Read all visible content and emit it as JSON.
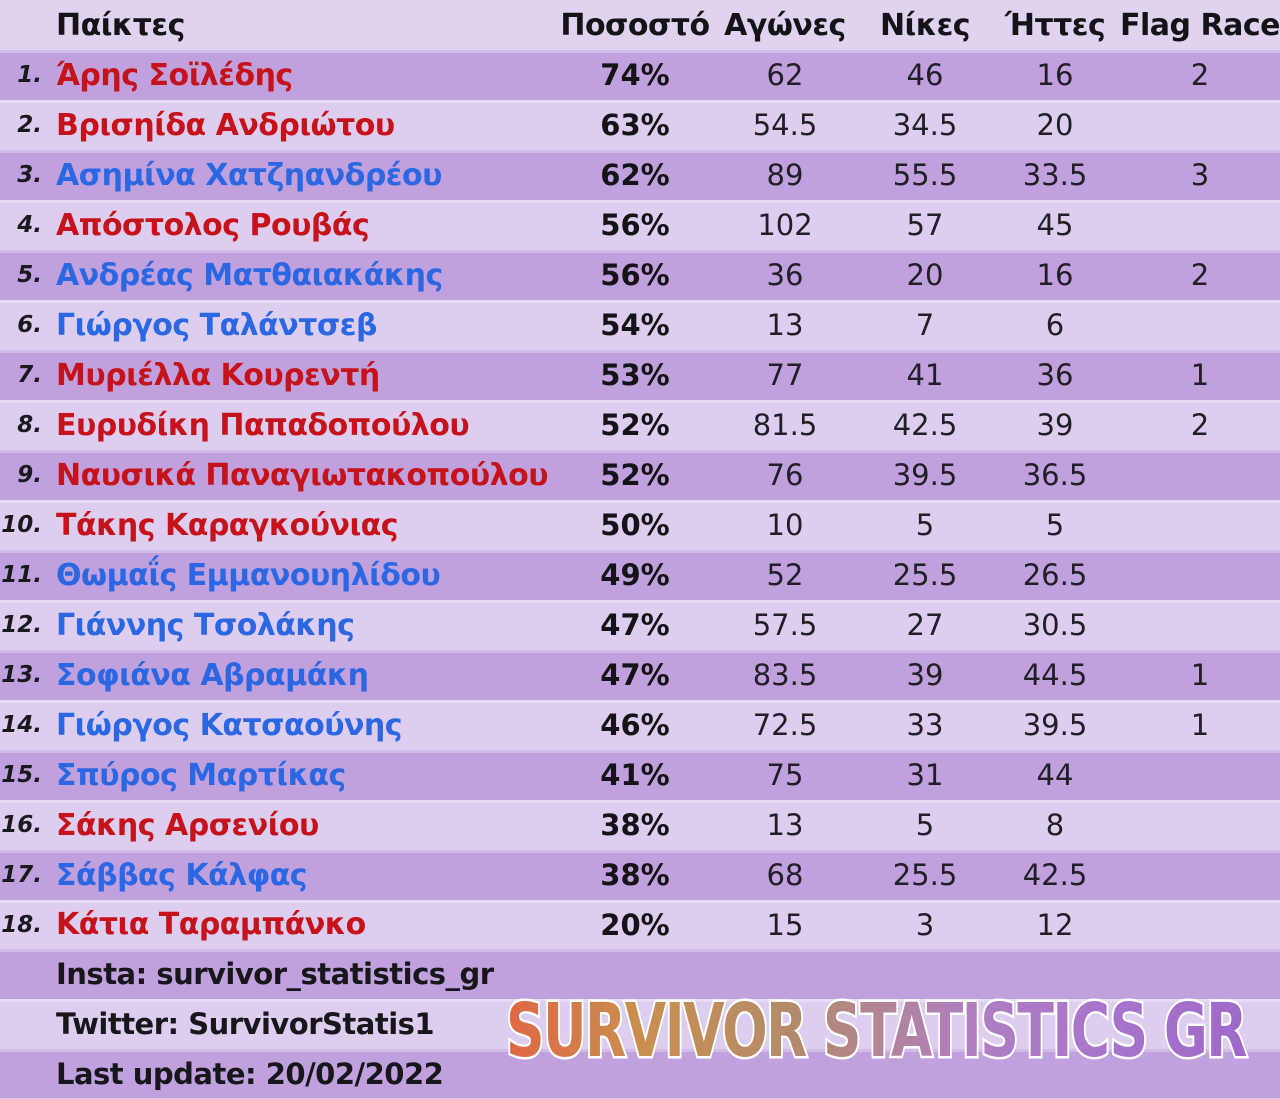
{
  "header": {
    "players": "Παίκτες",
    "percentage": "Ποσοστό",
    "matches": "Αγώνες",
    "wins": "Νίκες",
    "losses": "Ήττες",
    "flag_race": "Flag Race"
  },
  "rows": [
    {
      "rank": "1.",
      "name": "Άρης Σοϊλέδης",
      "color": "red",
      "pct": "74%",
      "matches": "62",
      "wins": "46",
      "losses": "16",
      "flag": "2"
    },
    {
      "rank": "2.",
      "name": "Βρισηίδα Ανδριώτου",
      "color": "red",
      "pct": "63%",
      "matches": "54.5",
      "wins": "34.5",
      "losses": "20",
      "flag": ""
    },
    {
      "rank": "3.",
      "name": "Ασημίνα Χατζηανδρέου",
      "color": "blue",
      "pct": "62%",
      "matches": "89",
      "wins": "55.5",
      "losses": "33.5",
      "flag": "3"
    },
    {
      "rank": "4.",
      "name": "Απόστολος Ρουβάς",
      "color": "red",
      "pct": "56%",
      "matches": "102",
      "wins": "57",
      "losses": "45",
      "flag": ""
    },
    {
      "rank": "5.",
      "name": "Ανδρέας Ματθαιακάκης",
      "color": "blue",
      "pct": "56%",
      "matches": "36",
      "wins": "20",
      "losses": "16",
      "flag": "2"
    },
    {
      "rank": "6.",
      "name": "Γιώργος Ταλάντσεβ",
      "color": "blue",
      "pct": "54%",
      "matches": "13",
      "wins": "7",
      "losses": "6",
      "flag": ""
    },
    {
      "rank": "7.",
      "name": "Μυριέλλα Κουρεντή",
      "color": "red",
      "pct": "53%",
      "matches": "77",
      "wins": "41",
      "losses": "36",
      "flag": "1"
    },
    {
      "rank": "8.",
      "name": "Ευρυδίκη Παπαδοπούλου",
      "color": "red",
      "pct": "52%",
      "matches": "81.5",
      "wins": "42.5",
      "losses": "39",
      "flag": "2"
    },
    {
      "rank": "9.",
      "name": "Ναυσικά Παναγιωτακοπούλου",
      "color": "red",
      "pct": "52%",
      "matches": "76",
      "wins": "39.5",
      "losses": "36.5",
      "flag": ""
    },
    {
      "rank": "10.",
      "name": "Τάκης Καραγκούνιας",
      "color": "red",
      "pct": "50%",
      "matches": "10",
      "wins": "5",
      "losses": "5",
      "flag": ""
    },
    {
      "rank": "11.",
      "name": "Θωμαΐς Εμμανουηλίδου",
      "color": "blue",
      "pct": "49%",
      "matches": "52",
      "wins": "25.5",
      "losses": "26.5",
      "flag": ""
    },
    {
      "rank": "12.",
      "name": "Γιάννης Τσολάκης",
      "color": "blue",
      "pct": "47%",
      "matches": "57.5",
      "wins": "27",
      "losses": "30.5",
      "flag": ""
    },
    {
      "rank": "13.",
      "name": "Σοφιάνα Αβραμάκη",
      "color": "blue",
      "pct": "47%",
      "matches": "83.5",
      "wins": "39",
      "losses": "44.5",
      "flag": "1"
    },
    {
      "rank": "14.",
      "name": "Γιώργος Κατσαούνης",
      "color": "blue",
      "pct": "46%",
      "matches": "72.5",
      "wins": "33",
      "losses": "39.5",
      "flag": "1"
    },
    {
      "rank": "15.",
      "name": "Σπύρος Μαρτίκας",
      "color": "blue",
      "pct": "41%",
      "matches": "75",
      "wins": "31",
      "losses": "44",
      "flag": ""
    },
    {
      "rank": "16.",
      "name": "Σάκης Αρσενίου",
      "color": "red",
      "pct": "38%",
      "matches": "13",
      "wins": "5",
      "losses": "8",
      "flag": ""
    },
    {
      "rank": "17.",
      "name": "Σάββας Κάλφας",
      "color": "blue",
      "pct": "38%",
      "matches": "68",
      "wins": "25.5",
      "losses": "42.5",
      "flag": ""
    },
    {
      "rank": "18.",
      "name": "Κάτια Ταραμπάνκο",
      "color": "red",
      "pct": "20%",
      "matches": "15",
      "wins": "3",
      "losses": "12",
      "flag": ""
    }
  ],
  "footer": {
    "insta": "Insta: survivor_statistics_gr",
    "twitter": "Twitter: SurvivorStatis1",
    "last_update": "Last update: 20/02/2022"
  },
  "watermark": "SURVIVOR STATISTICS GR",
  "colors": {
    "row_dark": "#c0a1de",
    "row_light": "#ddcef0",
    "name_red": "#c6121a",
    "name_blue": "#2b67e2",
    "watermark_gradient": [
      "#e06744",
      "#c98f4e",
      "#b28a6e",
      "#b07fc0",
      "#a873cd",
      "#9f6ac8"
    ]
  }
}
